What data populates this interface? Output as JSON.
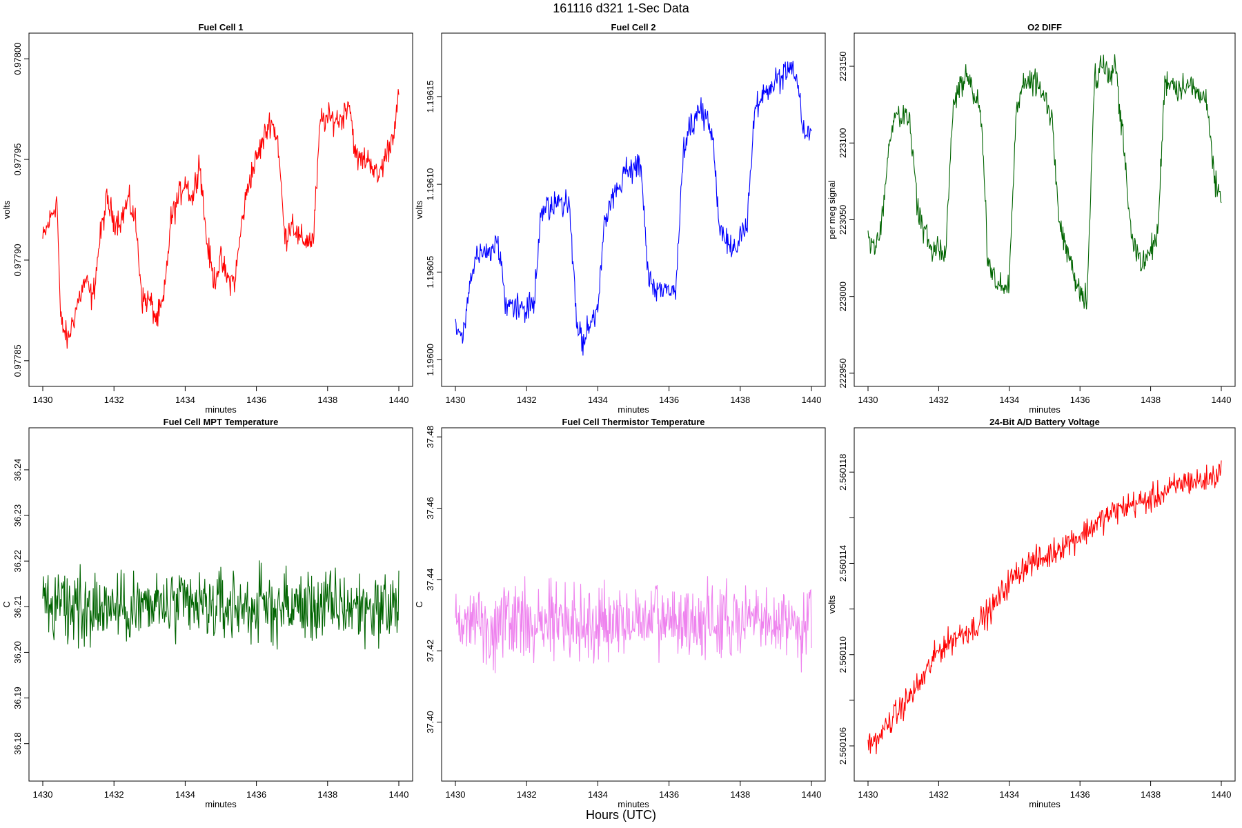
{
  "page": {
    "title": "161116    d321    1-Sec Data",
    "bottom_label": "Hours (UTC)"
  },
  "chart_data": [
    {
      "type": "line",
      "title": "Fuel Cell 1",
      "xlabel": "minutes",
      "ylabel": "volts",
      "color": "#ff0000",
      "xlim": [
        1430,
        1440
      ],
      "ylim": [
        0.97784,
        0.97801
      ],
      "xticks": [
        1430,
        1432,
        1434,
        1436,
        1438,
        1440
      ],
      "yticks": [
        0.97785,
        0.9779,
        0.97795,
        0.978
      ],
      "ytick_labels": [
        "0.97785",
        "0.97790",
        "0.97795",
        "0.97800"
      ],
      "series": [
        {
          "name": "Fuel Cell 1",
          "x": [
            1430.0,
            1430.2,
            1430.4,
            1430.5,
            1430.7,
            1431.0,
            1431.2,
            1431.4,
            1431.6,
            1431.8,
            1432.0,
            1432.2,
            1432.4,
            1432.6,
            1432.8,
            1433.0,
            1433.2,
            1433.4,
            1433.6,
            1433.8,
            1434.0,
            1434.2,
            1434.4,
            1434.6,
            1434.8,
            1435.0,
            1435.2,
            1435.4,
            1435.6,
            1435.8,
            1436.0,
            1436.2,
            1436.4,
            1436.6,
            1436.8,
            1437.0,
            1437.2,
            1437.4,
            1437.6,
            1437.8,
            1438.0,
            1438.2,
            1438.4,
            1438.6,
            1438.8,
            1439.0,
            1439.2,
            1439.4,
            1439.6,
            1439.8,
            1440.0
          ],
          "values": [
            0.97791,
            0.97792,
            0.97793,
            0.97787,
            0.97786,
            0.97788,
            0.97789,
            0.97788,
            0.97791,
            0.97793,
            0.97792,
            0.97792,
            0.97793,
            0.97792,
            0.97788,
            0.97788,
            0.97787,
            0.97788,
            0.97792,
            0.97793,
            0.97794,
            0.97793,
            0.97795,
            0.97791,
            0.97789,
            0.9779,
            0.97789,
            0.97789,
            0.97792,
            0.97794,
            0.97795,
            0.97796,
            0.97797,
            0.97796,
            0.97791,
            0.97792,
            0.97791,
            0.97791,
            0.97791,
            0.97797,
            0.97797,
            0.97797,
            0.97797,
            0.97798,
            0.97795,
            0.97795,
            0.97795,
            0.97794,
            0.97795,
            0.97796,
            0.97798
          ]
        }
      ]
    },
    {
      "type": "line",
      "title": "Fuel Cell 2",
      "xlabel": "minutes",
      "ylabel": "volts",
      "color": "#0000ff",
      "xlim": [
        1430,
        1440
      ],
      "ylim": [
        1.195988,
        1.196183
      ],
      "xticks": [
        1430,
        1432,
        1434,
        1436,
        1438,
        1440
      ],
      "yticks": [
        1.196,
        1.19605,
        1.1961,
        1.19615
      ],
      "ytick_labels": [
        "1.19600",
        "1.19605",
        "1.19610",
        "1.19615"
      ],
      "series": [
        {
          "name": "Fuel Cell 2",
          "x": [
            1430.0,
            1430.2,
            1430.4,
            1430.6,
            1430.8,
            1431.0,
            1431.2,
            1431.4,
            1431.6,
            1431.8,
            1432.0,
            1432.2,
            1432.4,
            1432.6,
            1432.8,
            1433.0,
            1433.2,
            1433.4,
            1433.6,
            1433.8,
            1434.0,
            1434.2,
            1434.4,
            1434.6,
            1434.8,
            1435.0,
            1435.2,
            1435.4,
            1435.6,
            1435.8,
            1436.0,
            1436.2,
            1436.4,
            1436.6,
            1436.8,
            1437.0,
            1437.2,
            1437.4,
            1437.6,
            1437.8,
            1438.0,
            1438.2,
            1438.4,
            1438.6,
            1438.8,
            1439.0,
            1439.2,
            1439.4,
            1439.6,
            1439.8,
            1440.0
          ],
          "values": [
            1.19602,
            1.19601,
            1.19604,
            1.19606,
            1.19606,
            1.19606,
            1.19607,
            1.19603,
            1.19603,
            1.19603,
            1.19603,
            1.19603,
            1.19608,
            1.19609,
            1.19609,
            1.19609,
            1.19609,
            1.19602,
            1.19601,
            1.19602,
            1.19603,
            1.19608,
            1.19609,
            1.1961,
            1.19611,
            1.19611,
            1.19611,
            1.19605,
            1.19604,
            1.19604,
            1.19604,
            1.19604,
            1.19612,
            1.19613,
            1.19614,
            1.19614,
            1.19613,
            1.19608,
            1.19607,
            1.19606,
            1.19607,
            1.19608,
            1.19614,
            1.19615,
            1.19615,
            1.19616,
            1.19616,
            1.19617,
            1.19616,
            1.19613,
            1.19613
          ]
        }
      ]
    },
    {
      "type": "line",
      "title": "O2 DIFF",
      "xlabel": "minutes",
      "ylabel": "per meg signal",
      "color": "#006400",
      "xlim": [
        1430,
        1440
      ],
      "ylim": [
        222945,
        223168
      ],
      "xticks": [
        1430,
        1432,
        1434,
        1436,
        1438,
        1440
      ],
      "yticks": [
        222950,
        223000,
        223050,
        223100,
        223150
      ],
      "ytick_labels": [
        "222950",
        "223000",
        "223050",
        "223100",
        "223150"
      ],
      "series": [
        {
          "name": "O2 DIFF",
          "x": [
            1430.0,
            1430.2,
            1430.4,
            1430.6,
            1430.8,
            1431.0,
            1431.2,
            1431.4,
            1431.6,
            1431.8,
            1432.0,
            1432.2,
            1432.4,
            1432.6,
            1432.8,
            1433.0,
            1433.2,
            1433.4,
            1433.6,
            1433.8,
            1434.0,
            1434.2,
            1434.4,
            1434.6,
            1434.8,
            1435.0,
            1435.2,
            1435.4,
            1435.6,
            1435.8,
            1436.0,
            1436.2,
            1436.4,
            1436.6,
            1436.8,
            1437.0,
            1437.2,
            1437.4,
            1437.6,
            1437.8,
            1438.0,
            1438.2,
            1438.4,
            1438.6,
            1438.8,
            1439.0,
            1439.2,
            1439.4,
            1439.6,
            1439.8,
            1440.0
          ],
          "values": [
            223040,
            223030,
            223050,
            223100,
            223120,
            223120,
            223110,
            223060,
            223040,
            223030,
            223030,
            223030,
            223120,
            223140,
            223140,
            223135,
            223120,
            223020,
            223010,
            223005,
            223010,
            223120,
            223140,
            223140,
            223140,
            223130,
            223115,
            223050,
            223030,
            223020,
            223000,
            223000,
            223140,
            223150,
            223145,
            223150,
            223110,
            223050,
            223030,
            223020,
            223030,
            223040,
            223140,
            223140,
            223135,
            223140,
            223135,
            223130,
            223130,
            223075,
            223060
          ]
        }
      ]
    },
    {
      "type": "line",
      "title": "Fuel Cell MPT Temperature",
      "xlabel": "minutes",
      "ylabel": "C",
      "color": "#006400",
      "xlim": [
        1430,
        1440
      ],
      "ylim": [
        36.173,
        36.248
      ],
      "xticks": [
        1430,
        1432,
        1434,
        1436,
        1438,
        1440
      ],
      "yticks": [
        36.18,
        36.19,
        36.2,
        36.21,
        36.22,
        36.23,
        36.24
      ],
      "ytick_labels": [
        "36.18",
        "36.19",
        "36.20",
        "36.21",
        "36.22",
        "36.23",
        "36.24"
      ],
      "noise_amplitude": 0.012,
      "series": [
        {
          "name": "Fuel Cell MPT Temperature",
          "x": [
            1430,
            1432,
            1434,
            1436,
            1438,
            1440
          ],
          "values": [
            36.21,
            36.21,
            36.21,
            36.21,
            36.21,
            36.21
          ]
        }
      ]
    },
    {
      "type": "line",
      "title": "Fuel Cell Thermistor Temperature",
      "xlabel": "minutes",
      "ylabel": "C",
      "color": "#ee82ee",
      "xlim": [
        1430,
        1440
      ],
      "ylim": [
        37.385,
        37.481
      ],
      "xticks": [
        1430,
        1432,
        1434,
        1436,
        1438,
        1440
      ],
      "yticks": [
        37.4,
        37.42,
        37.44,
        37.46,
        37.48
      ],
      "ytick_labels": [
        "37.40",
        "37.42",
        "37.44",
        "37.46",
        "37.48"
      ],
      "noise_amplitude": 0.016,
      "series": [
        {
          "name": "Fuel Cell Thermistor Temperature",
          "x": [
            1430,
            1432,
            1434,
            1436,
            1438,
            1440
          ],
          "values": [
            37.428,
            37.428,
            37.428,
            37.428,
            37.428,
            37.428
          ]
        }
      ]
    },
    {
      "type": "line",
      "title": "24-Bit A/D Battery Voltage",
      "xlabel": "minutes",
      "ylabel": "volts",
      "color": "#ff0000",
      "xlim": [
        1430,
        1440
      ],
      "ylim": [
        2.5601047,
        2.5601197
      ],
      "xticks": [
        1430,
        1432,
        1434,
        1436,
        1438,
        1440
      ],
      "yticks": [
        2.560106,
        2.560108,
        2.56011,
        2.560112,
        2.560114,
        2.560116,
        2.560118
      ],
      "ytick_labels": [
        "2.560106",
        "",
        "2.560110",
        "",
        "2.560114",
        "",
        "2.560118"
      ],
      "series": [
        {
          "name": "24-Bit A/D Battery Voltage",
          "x": [
            1430.0,
            1430.5,
            1431.0,
            1431.5,
            1432.0,
            1432.5,
            1433.0,
            1433.5,
            1434.0,
            1434.5,
            1435.0,
            1435.5,
            1436.0,
            1436.5,
            1437.0,
            1437.5,
            1438.0,
            1438.5,
            1439.0,
            1439.5,
            1440.0
          ],
          "values": [
            2.560106,
            2.5601068,
            2.5601078,
            2.5601088,
            2.5601102,
            2.5601108,
            2.5601112,
            2.560112,
            2.5601132,
            2.560114,
            2.5601142,
            2.5601148,
            2.5601152,
            2.5601158,
            2.5601163,
            2.5601166,
            2.5601168,
            2.5601172,
            2.5601176,
            2.5601176,
            2.560118
          ]
        }
      ]
    }
  ]
}
